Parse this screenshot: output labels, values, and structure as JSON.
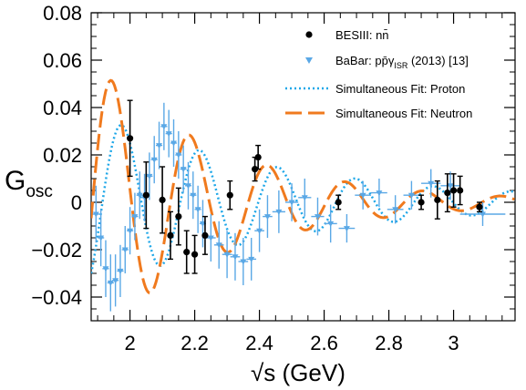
{
  "chart_data": {
    "type": "scatter",
    "title": "",
    "xlabel": "√s (GeV)",
    "xlabel_sqrt": "√",
    "xlabel_rest": "s (GeV)",
    "ylabel": "G_osc",
    "ylabel_main": "G",
    "ylabel_sub": "osc",
    "xlim": [
      1.88,
      3.19
    ],
    "ylim": [
      -0.05,
      0.08
    ],
    "x_ticks": [
      2,
      2.2,
      2.4,
      2.6,
      2.8,
      3
    ],
    "x_tick_labels": [
      "2",
      "2.2",
      "2.4",
      "2.6",
      "2.8",
      "3"
    ],
    "y_ticks": [
      -0.04,
      -0.02,
      0,
      0.02,
      0.04,
      0.06,
      0.08
    ],
    "y_tick_labels": [
      "−0.04",
      "−0.02",
      "0",
      "0.02",
      "0.04",
      "0.06",
      "0.08"
    ],
    "legend_position": "top-right",
    "colors": {
      "besiii": "#000000",
      "babar": "#5aa8e6",
      "proton_fit": "#1ea7e8",
      "neutron_fit": "#f07a1e"
    },
    "series": [
      {
        "name": "BESIII: nn̄",
        "legend_label": "BESIII: nn̄",
        "kind": "points",
        "points": [
          {
            "x": 2.0,
            "y": 0.027,
            "err": 0.016
          },
          {
            "x": 2.05,
            "y": 0.003,
            "err": 0.014
          },
          {
            "x": 2.1,
            "y": 0.001,
            "err": 0.014
          },
          {
            "x": 2.125,
            "y": -0.014,
            "err": 0.01
          },
          {
            "x": 2.15,
            "y": -0.006,
            "err": 0.012
          },
          {
            "x": 2.175,
            "y": -0.021,
            "err": 0.009
          },
          {
            "x": 2.2,
            "y": -0.022,
            "err": 0.008
          },
          {
            "x": 2.232,
            "y": -0.014,
            "err": 0.008
          },
          {
            "x": 2.309,
            "y": 0.003,
            "err": 0.006
          },
          {
            "x": 2.386,
            "y": 0.014,
            "err": 0.005
          },
          {
            "x": 2.396,
            "y": 0.019,
            "err": 0.005
          },
          {
            "x": 2.644,
            "y": 0.0,
            "err": 0.003
          },
          {
            "x": 2.9,
            "y": 0.0,
            "err": 0.003
          },
          {
            "x": 2.95,
            "y": 0.001,
            "err": 0.008
          },
          {
            "x": 2.981,
            "y": 0.004,
            "err": 0.008
          },
          {
            "x": 3.0,
            "y": 0.005,
            "err": 0.007
          },
          {
            "x": 3.02,
            "y": 0.005,
            "err": 0.006
          },
          {
            "x": 3.08,
            "y": -0.002,
            "err": 0.002
          }
        ]
      },
      {
        "name": "BaBar: pp̄γ_ISR (2013) [13]",
        "legend_label_main": "BaBar: pp̄γ",
        "legend_label_sub": "ISR",
        "legend_label_tail": " (2013) [13]",
        "kind": "points",
        "points": [
          {
            "x": 1.895,
            "y": -0.005,
            "xerr": 0.01,
            "err": 0.012
          },
          {
            "x": 1.91,
            "y": -0.015,
            "xerr": 0.01,
            "err": 0.012
          },
          {
            "x": 1.925,
            "y": -0.028,
            "xerr": 0.01,
            "err": 0.012
          },
          {
            "x": 1.94,
            "y": -0.034,
            "xerr": 0.01,
            "err": 0.012
          },
          {
            "x": 1.955,
            "y": -0.033,
            "xerr": 0.01,
            "err": 0.011
          },
          {
            "x": 1.97,
            "y": -0.029,
            "xerr": 0.01,
            "err": 0.011
          },
          {
            "x": 1.985,
            "y": -0.02,
            "xerr": 0.01,
            "err": 0.01
          },
          {
            "x": 2.0,
            "y": -0.012,
            "xerr": 0.01,
            "err": 0.01
          },
          {
            "x": 2.015,
            "y": -0.006,
            "xerr": 0.01,
            "err": 0.01
          },
          {
            "x": 2.03,
            "y": 0.003,
            "xerr": 0.01,
            "err": 0.01
          },
          {
            "x": 2.045,
            "y": 0.002,
            "xerr": 0.01,
            "err": 0.01
          },
          {
            "x": 2.06,
            "y": 0.011,
            "xerr": 0.01,
            "err": 0.01
          },
          {
            "x": 2.075,
            "y": 0.018,
            "xerr": 0.01,
            "err": 0.01
          },
          {
            "x": 2.09,
            "y": 0.024,
            "xerr": 0.01,
            "err": 0.01
          },
          {
            "x": 2.105,
            "y": 0.032,
            "xerr": 0.01,
            "err": 0.01
          },
          {
            "x": 2.12,
            "y": 0.029,
            "xerr": 0.01,
            "err": 0.01
          },
          {
            "x": 2.135,
            "y": 0.025,
            "xerr": 0.01,
            "err": 0.01
          },
          {
            "x": 2.15,
            "y": 0.02,
            "xerr": 0.01,
            "err": 0.01
          },
          {
            "x": 2.165,
            "y": 0.014,
            "xerr": 0.01,
            "err": 0.01
          },
          {
            "x": 2.18,
            "y": 0.007,
            "xerr": 0.01,
            "err": 0.01
          },
          {
            "x": 2.195,
            "y": 0.003,
            "xerr": 0.01,
            "err": 0.01
          },
          {
            "x": 2.21,
            "y": -0.003,
            "xerr": 0.01,
            "err": 0.01
          },
          {
            "x": 2.225,
            "y": -0.009,
            "xerr": 0.01,
            "err": 0.01
          },
          {
            "x": 2.25,
            "y": -0.015,
            "xerr": 0.015,
            "err": 0.01
          },
          {
            "x": 2.275,
            "y": -0.018,
            "xerr": 0.015,
            "err": 0.01
          },
          {
            "x": 2.3,
            "y": -0.022,
            "xerr": 0.015,
            "err": 0.01
          },
          {
            "x": 2.325,
            "y": -0.023,
            "xerr": 0.015,
            "err": 0.01
          },
          {
            "x": 2.35,
            "y": -0.025,
            "xerr": 0.015,
            "err": 0.01
          },
          {
            "x": 2.375,
            "y": -0.024,
            "xerr": 0.015,
            "err": 0.009
          },
          {
            "x": 2.4,
            "y": -0.012,
            "xerr": 0.015,
            "err": 0.009
          },
          {
            "x": 2.425,
            "y": -0.006,
            "xerr": 0.015,
            "err": 0.009
          },
          {
            "x": 2.46,
            "y": -0.004,
            "xerr": 0.02,
            "err": 0.009
          },
          {
            "x": 2.5,
            "y": 0.0,
            "xerr": 0.02,
            "err": 0.008
          },
          {
            "x": 2.54,
            "y": 0.002,
            "xerr": 0.02,
            "err": 0.008
          },
          {
            "x": 2.58,
            "y": -0.006,
            "xerr": 0.02,
            "err": 0.008
          },
          {
            "x": 2.62,
            "y": -0.009,
            "xerr": 0.02,
            "err": 0.008
          },
          {
            "x": 2.67,
            "y": -0.011,
            "xerr": 0.025,
            "err": 0.006
          },
          {
            "x": 2.72,
            "y": 0.003,
            "xerr": 0.025,
            "err": 0.006
          },
          {
            "x": 2.77,
            "y": 0.004,
            "xerr": 0.025,
            "err": 0.006
          },
          {
            "x": 2.82,
            "y": -0.003,
            "xerr": 0.025,
            "err": 0.006
          },
          {
            "x": 2.87,
            "y": 0.003,
            "xerr": 0.025,
            "err": 0.006
          },
          {
            "x": 2.93,
            "y": 0.008,
            "xerr": 0.03,
            "err": 0.006
          },
          {
            "x": 2.99,
            "y": 0.007,
            "xerr": 0.03,
            "err": 0.006
          },
          {
            "x": 3.09,
            "y": -0.005,
            "xerr": 0.07,
            "err": 0.005
          }
        ]
      },
      {
        "name": "Simultaneous Fit: Proton",
        "legend_label": "Simultaneous Fit: Proton",
        "kind": "curve",
        "model": {
          "amp": 0.038,
          "decay": 1.63,
          "omega": 26.1,
          "phase": 3.8
        }
      },
      {
        "name": "Simultaneous Fit: Neutron",
        "legend_label": "Simultaneous Fit: Neutron",
        "kind": "curve",
        "model": {
          "amp": 0.06,
          "decay": 2.46,
          "omega": 26.1,
          "phase": 4.6
        }
      }
    ]
  }
}
